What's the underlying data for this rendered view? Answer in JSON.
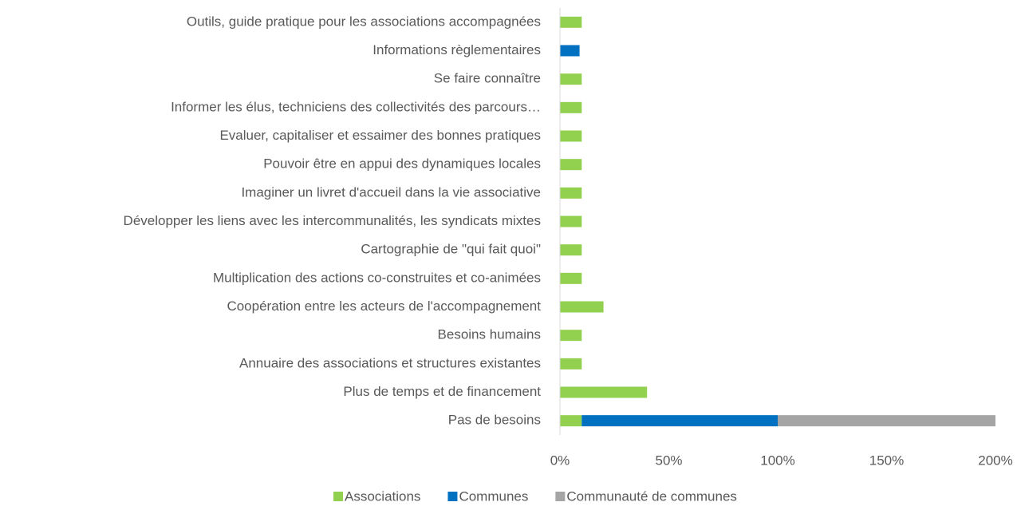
{
  "chart_data": {
    "type": "stacked_barh",
    "categories": [
      "Pas de besoins ",
      "Plus de temps et de financement",
      "Annuaire des associations et structures existantes",
      "Besoins humains",
      "Coopération entre les acteurs de l'accompagnement",
      "Multiplication des actions co-construites et co-animées",
      "Cartographie de \"qui fait quoi\" ",
      "Développer les liens avec les intercommunalités, les syndicats mixtes",
      "Imaginer un livret d'accueil dans la vie associative",
      "Pouvoir être en appui des dynamiques locales ",
      "Evaluer, capitaliser et essaimer des bonnes pratiques ",
      "Informer les élus, techniciens des collectivités des parcours…",
      "Se faire connaître",
      "Informations règlementaires",
      "Outils, guide pratique pour les associations accompagnées"
    ],
    "series": [
      {
        "name": "Associations",
        "color": "#92d050",
        "values": [
          10,
          40,
          10,
          10,
          20,
          10,
          10,
          10,
          10,
          10,
          10,
          10,
          10,
          0,
          10
        ]
      },
      {
        "name": "Communes",
        "color": "#0070c0",
        "values": [
          90,
          0,
          0,
          0,
          0,
          0,
          0,
          0,
          0,
          0,
          0,
          0,
          0,
          9,
          0
        ]
      },
      {
        "name": "Communauté de communes",
        "color": "#a5a5a5",
        "values": [
          100,
          0,
          0,
          0,
          0,
          0,
          0,
          0,
          0,
          0,
          0,
          0,
          0,
          0,
          0
        ]
      }
    ],
    "xlim": [
      0,
      200
    ],
    "xticks": [
      {
        "value": 0,
        "label": "0%"
      },
      {
        "value": 50,
        "label": "50%"
      },
      {
        "value": 100,
        "label": "100%"
      },
      {
        "value": 150,
        "label": "150%"
      },
      {
        "value": 200,
        "label": "200%"
      }
    ],
    "legend": "bottom"
  }
}
